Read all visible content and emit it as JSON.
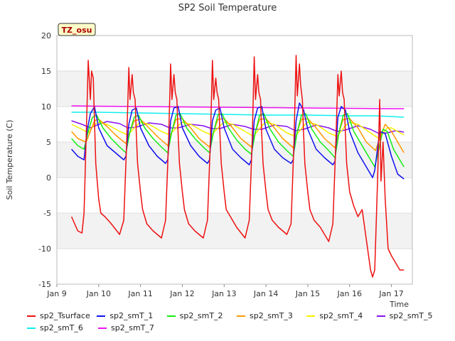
{
  "chart_data": {
    "type": "line",
    "title": "SP2 Soil Temperature",
    "xlabel": "Time",
    "ylabel": "Soil Temperature (C)",
    "annotation": "TZ_osu",
    "xlim": [
      9.0,
      17.5
    ],
    "ylim": [
      -15,
      20
    ],
    "x_ticks": [
      9,
      10,
      11,
      12,
      13,
      14,
      15,
      16,
      17
    ],
    "x_tick_labels": [
      "Jan 9",
      "Jan 10",
      "Jan 11",
      "Jan 12",
      "Jan 13",
      "Jan 14",
      "Jan 15",
      "Jan 16",
      "Jan 17"
    ],
    "y_ticks": [
      -15,
      -10,
      -5,
      0,
      5,
      10,
      15,
      20
    ],
    "grid": true,
    "legend_position": "bottom",
    "series": [
      {
        "name": "sp2_Tsurface",
        "color": "#ee1111",
        "x": [
          9.35,
          9.5,
          9.6,
          9.65,
          9.72,
          9.75,
          9.8,
          9.83,
          9.87,
          9.9,
          9.93,
          10.0,
          10.05,
          10.15,
          10.3,
          10.5,
          10.6,
          10.67,
          10.72,
          10.75,
          10.8,
          10.83,
          10.87,
          10.9,
          10.93,
          11.0,
          11.05,
          11.15,
          11.3,
          11.5,
          11.6,
          11.67,
          11.72,
          11.75,
          11.8,
          11.83,
          11.87,
          11.9,
          11.93,
          12.0,
          12.05,
          12.15,
          12.3,
          12.5,
          12.6,
          12.67,
          12.72,
          12.75,
          12.8,
          12.83,
          12.87,
          12.9,
          12.93,
          13.0,
          13.05,
          13.15,
          13.3,
          13.5,
          13.6,
          13.67,
          13.72,
          13.75,
          13.8,
          13.83,
          13.87,
          13.9,
          13.93,
          14.0,
          14.05,
          14.15,
          14.3,
          14.5,
          14.6,
          14.67,
          14.72,
          14.75,
          14.8,
          14.83,
          14.87,
          14.9,
          14.93,
          15.0,
          15.05,
          15.15,
          15.3,
          15.5,
          15.6,
          15.67,
          15.72,
          15.75,
          15.8,
          15.83,
          15.87,
          15.9,
          15.93,
          16.0,
          16.1,
          16.2,
          16.3,
          16.5,
          16.55,
          16.6,
          16.67,
          16.72,
          16.75,
          16.8,
          16.85,
          16.92,
          17.0,
          17.1,
          17.2,
          17.3
        ],
        "values": [
          -5.5,
          -7.5,
          -7.8,
          -5.0,
          10.0,
          16.5,
          11.0,
          15.0,
          14.0,
          8.0,
          2.0,
          -3.0,
          -5.0,
          -5.5,
          -6.5,
          -8.0,
          -6.0,
          5.0,
          15.5,
          11.0,
          14.5,
          12.0,
          11.0,
          6.0,
          2.0,
          -2.0,
          -4.5,
          -6.5,
          -7.5,
          -8.5,
          -6.0,
          5.0,
          16.0,
          11.0,
          14.5,
          12.0,
          11.0,
          6.0,
          2.0,
          -2.0,
          -4.5,
          -6.5,
          -7.5,
          -8.5,
          -6.0,
          5.0,
          16.5,
          11.0,
          14.0,
          12.0,
          11.0,
          6.0,
          2.0,
          -2.0,
          -4.5,
          -5.5,
          -7.0,
          -8.5,
          -6.0,
          5.0,
          17.0,
          11.0,
          14.5,
          12.0,
          11.0,
          6.0,
          2.0,
          -2.0,
          -4.5,
          -6.0,
          -7.0,
          -8.0,
          -6.5,
          5.0,
          17.2,
          11.5,
          16.0,
          13.0,
          11.0,
          6.0,
          2.0,
          -2.0,
          -4.5,
          -6.0,
          -7.0,
          -9.0,
          -6.5,
          5.0,
          14.5,
          11.5,
          15.0,
          12.0,
          11.0,
          6.0,
          2.0,
          -2.0,
          -4.0,
          -5.5,
          -4.5,
          -13.0,
          -14.0,
          -13.0,
          0.0,
          11.0,
          -0.5,
          5.0,
          -3.0,
          -10.0,
          -11.0,
          -12.0,
          -13.0,
          -13.0
        ]
      },
      {
        "name": "sp2_smT_1",
        "color": "#1111ee",
        "x": [
          9.35,
          9.5,
          9.65,
          9.72,
          9.8,
          9.9,
          10.0,
          10.2,
          10.4,
          10.6,
          10.65,
          10.72,
          10.8,
          10.9,
          11.0,
          11.2,
          11.4,
          11.6,
          11.65,
          11.72,
          11.8,
          11.9,
          12.0,
          12.2,
          12.4,
          12.6,
          12.65,
          12.72,
          12.8,
          12.9,
          13.0,
          13.2,
          13.4,
          13.6,
          13.65,
          13.72,
          13.8,
          13.9,
          14.0,
          14.2,
          14.4,
          14.6,
          14.65,
          14.72,
          14.8,
          14.9,
          15.0,
          15.2,
          15.4,
          15.6,
          15.65,
          15.72,
          15.8,
          15.9,
          16.0,
          16.2,
          16.4,
          16.55,
          16.6,
          16.72,
          16.85,
          17.0,
          17.15,
          17.3
        ],
        "values": [
          4.0,
          3.0,
          2.5,
          6.5,
          9.0,
          10.0,
          7.0,
          4.5,
          3.5,
          2.5,
          3.0,
          7.5,
          9.5,
          9.8,
          7.0,
          4.5,
          3.0,
          2.0,
          2.5,
          8.0,
          9.8,
          10.0,
          7.0,
          4.5,
          3.0,
          2.0,
          2.5,
          8.0,
          9.5,
          9.8,
          7.0,
          4.0,
          2.8,
          1.8,
          2.5,
          8.0,
          9.8,
          10.0,
          6.8,
          4.0,
          2.8,
          2.0,
          2.5,
          8.0,
          10.5,
          9.5,
          6.8,
          4.0,
          2.8,
          1.8,
          2.3,
          8.5,
          10.0,
          9.5,
          6.5,
          3.5,
          1.5,
          0.0,
          1.0,
          6.5,
          6.2,
          3.0,
          0.5,
          -0.2
        ]
      },
      {
        "name": "sp2_smT_2",
        "color": "#11ee11",
        "x": [
          9.35,
          9.5,
          9.65,
          9.75,
          9.85,
          9.95,
          10.1,
          10.3,
          10.5,
          10.65,
          10.75,
          10.85,
          10.95,
          11.1,
          11.3,
          11.5,
          11.65,
          11.75,
          11.85,
          11.95,
          12.1,
          12.3,
          12.5,
          12.65,
          12.75,
          12.85,
          12.95,
          13.1,
          13.3,
          13.5,
          13.65,
          13.75,
          13.85,
          13.95,
          14.1,
          14.3,
          14.5,
          14.65,
          14.75,
          14.85,
          14.95,
          15.1,
          15.3,
          15.5,
          15.65,
          15.75,
          15.85,
          15.95,
          16.1,
          16.3,
          16.6,
          16.7,
          16.8,
          16.9,
          17.05,
          17.3
        ],
        "values": [
          5.5,
          4.5,
          4.0,
          6.5,
          8.5,
          8.8,
          7.0,
          5.5,
          4.3,
          3.5,
          6.5,
          8.5,
          8.8,
          7.0,
          5.5,
          4.3,
          3.5,
          6.5,
          8.8,
          9.0,
          7.0,
          5.5,
          4.3,
          3.5,
          6.5,
          8.8,
          9.0,
          7.0,
          5.3,
          4.0,
          3.3,
          6.5,
          8.8,
          9.0,
          6.8,
          5.0,
          3.8,
          3.0,
          6.5,
          8.8,
          9.0,
          6.8,
          5.0,
          3.8,
          2.8,
          6.5,
          8.8,
          9.0,
          6.5,
          4.5,
          1.5,
          4.0,
          6.8,
          6.5,
          4.0,
          1.5
        ]
      },
      {
        "name": "sp2_smT_3",
        "color": "#ff9900",
        "x": [
          9.35,
          9.5,
          9.7,
          9.8,
          9.9,
          10.0,
          10.2,
          10.4,
          10.65,
          10.75,
          10.85,
          11.0,
          11.2,
          11.4,
          11.65,
          11.75,
          11.85,
          12.0,
          12.2,
          12.4,
          12.65,
          12.75,
          12.85,
          13.0,
          13.2,
          13.4,
          13.65,
          13.75,
          13.85,
          14.0,
          14.2,
          14.4,
          14.65,
          14.75,
          14.85,
          15.0,
          15.2,
          15.4,
          15.65,
          15.75,
          15.85,
          16.0,
          16.2,
          16.4,
          16.62,
          16.72,
          16.85,
          17.0,
          17.3
        ],
        "values": [
          6.5,
          5.5,
          5.0,
          6.5,
          8.0,
          8.2,
          7.2,
          6.0,
          4.8,
          6.5,
          8.0,
          8.2,
          7.0,
          5.8,
          4.5,
          6.5,
          8.2,
          8.3,
          7.0,
          5.5,
          4.3,
          6.5,
          8.2,
          8.3,
          7.0,
          5.5,
          4.3,
          6.5,
          8.2,
          8.3,
          7.0,
          5.5,
          4.2,
          6.5,
          8.2,
          8.3,
          7.0,
          5.5,
          4.2,
          6.5,
          8.2,
          8.3,
          7.0,
          5.0,
          3.8,
          5.5,
          7.5,
          6.5,
          3.5
        ]
      },
      {
        "name": "sp2_smT_4",
        "color": "#f5f000",
        "x": [
          9.35,
          9.6,
          9.75,
          9.9,
          10.0,
          10.2,
          10.5,
          10.7,
          10.9,
          11.0,
          11.2,
          11.5,
          11.7,
          11.9,
          12.0,
          12.2,
          12.5,
          12.7,
          12.9,
          13.0,
          13.2,
          13.5,
          13.7,
          13.9,
          14.0,
          14.2,
          14.5,
          14.7,
          14.9,
          15.0,
          15.2,
          15.5,
          15.7,
          15.9,
          16.0,
          16.2,
          16.5,
          16.7,
          16.9,
          17.0,
          17.3
        ],
        "values": [
          7.5,
          6.8,
          6.3,
          7.5,
          7.8,
          7.5,
          6.5,
          6.0,
          7.3,
          7.8,
          7.5,
          6.5,
          6.0,
          7.3,
          7.8,
          7.5,
          6.5,
          6.0,
          7.3,
          7.8,
          7.5,
          6.5,
          5.8,
          7.3,
          7.8,
          7.5,
          6.3,
          5.8,
          7.3,
          7.8,
          7.5,
          6.3,
          5.8,
          7.3,
          7.8,
          7.5,
          6.3,
          5.5,
          7.0,
          7.0,
          6.0
        ]
      },
      {
        "name": "sp2_smT_5",
        "color": "#8811ee",
        "x": [
          9.35,
          9.6,
          9.8,
          10.0,
          10.2,
          10.5,
          10.7,
          10.9,
          11.2,
          11.5,
          11.7,
          11.9,
          12.2,
          12.5,
          12.7,
          12.9,
          13.2,
          13.5,
          13.7,
          13.9,
          14.2,
          14.5,
          14.7,
          14.9,
          15.2,
          15.5,
          15.7,
          15.9,
          16.2,
          16.5,
          16.7,
          16.9,
          17.1,
          17.3
        ],
        "values": [
          8.0,
          7.5,
          7.0,
          7.5,
          7.9,
          7.6,
          7.0,
          7.1,
          7.7,
          7.5,
          7.0,
          7.0,
          7.5,
          7.3,
          6.9,
          6.9,
          7.5,
          7.2,
          6.8,
          6.8,
          7.4,
          7.2,
          6.6,
          6.8,
          7.4,
          7.0,
          6.5,
          6.7,
          7.3,
          6.8,
          6.2,
          6.3,
          6.6,
          6.4
        ]
      },
      {
        "name": "sp2_smT_6",
        "color": "#11eeee",
        "x": [
          9.35,
          10.0,
          11.0,
          12.0,
          13.0,
          14.0,
          15.0,
          16.0,
          16.6,
          17.0,
          17.3
        ],
        "values": [
          9.2,
          9.2,
          9.1,
          9.0,
          8.9,
          8.8,
          8.8,
          8.7,
          8.7,
          8.6,
          8.5
        ]
      },
      {
        "name": "sp2_smT_7",
        "color": "#ee11ee",
        "x": [
          9.35,
          10.0,
          11.0,
          12.0,
          13.0,
          14.0,
          15.0,
          16.0,
          17.0,
          17.3
        ],
        "values": [
          10.1,
          10.05,
          10.0,
          9.95,
          9.9,
          9.85,
          9.8,
          9.75,
          9.7,
          9.7
        ]
      }
    ]
  }
}
